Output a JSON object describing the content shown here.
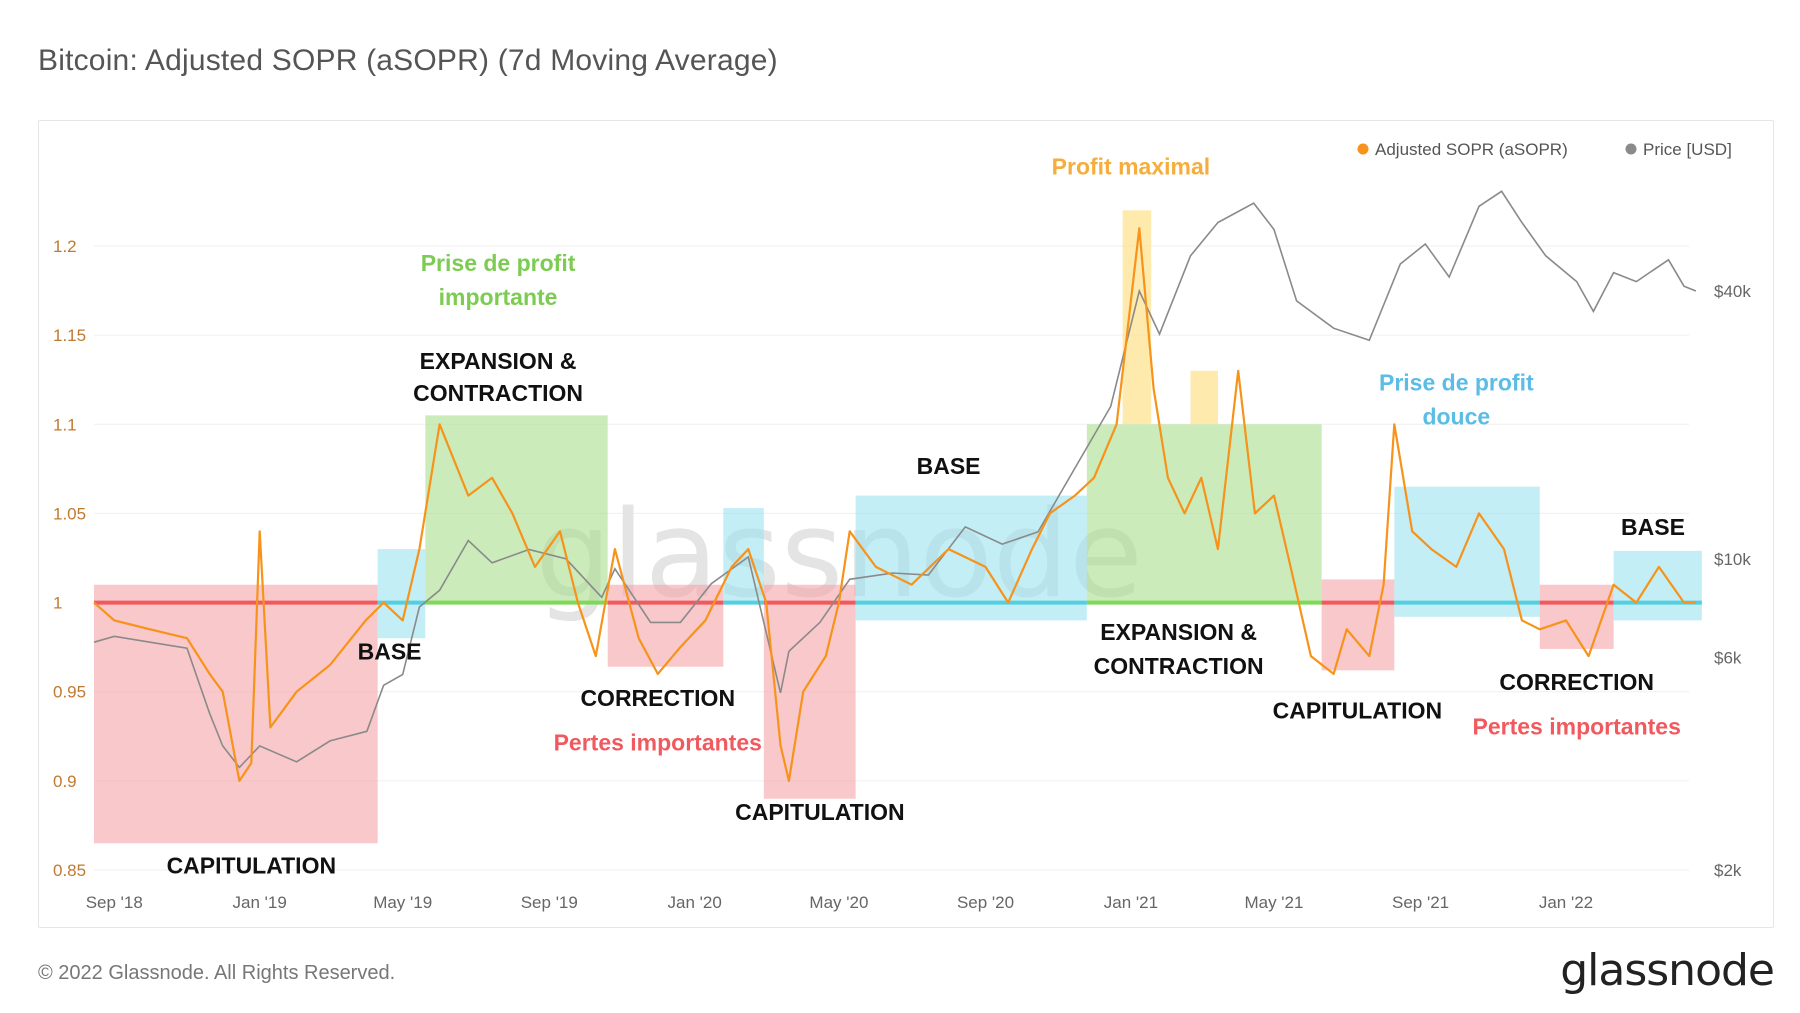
{
  "title": "Bitcoin: Adjusted SOPR (aSOPR) (7d Moving Average)",
  "footer": "© 2022 Glassnode. All Rights Reserved.",
  "brand": "glassnode",
  "watermark": "glassnode",
  "colors": {
    "sopr": "#f7931a",
    "price": "#8a8a8a",
    "red_zone": "#f5a3a8",
    "green_zone": "#a8e08c",
    "blue_zone": "#9be3ee",
    "yellow_zone": "#fde18a",
    "red_text": "#f05a5e",
    "green_text": "#7ccc52",
    "blue_text": "#5bbde6",
    "yellow_text": "#f5ae3c"
  },
  "chart_data": {
    "type": "line",
    "title": "Bitcoin: Adjusted SOPR (aSOPR) (7d Moving Average)",
    "x_ticks": [
      "Sep '18",
      "Jan '19",
      "May '19",
      "Sep '19",
      "Jan '20",
      "May '20",
      "Sep '20",
      "Jan '21",
      "May '21",
      "Sep '21",
      "Jan '22"
    ],
    "y_left": {
      "ticks": [
        "1.2",
        "1.15",
        "1.1",
        "1.05",
        "1",
        "0.95",
        "0.9",
        "0.85"
      ],
      "ylim": [
        0.85,
        1.2
      ]
    },
    "y_right": {
      "scale": "log",
      "ticks": [
        "$40k",
        "$10k",
        "$6k",
        "$2k"
      ]
    },
    "legend": {
      "placement": "top-right",
      "items": [
        "Adjusted SOPR (aSOPR)",
        "Price [USD]"
      ]
    },
    "series": [
      {
        "name": "Adjusted SOPR (aSOPR)",
        "axis": "left",
        "x": [
          "2018-08-15",
          "2018-09-01",
          "2018-10-01",
          "2018-11-01",
          "2018-11-20",
          "2018-12-01",
          "2018-12-15",
          "2018-12-25",
          "2019-01-01",
          "2019-01-10",
          "2019-02-01",
          "2019-03-01",
          "2019-03-31",
          "2019-04-15",
          "2019-05-01",
          "2019-05-15",
          "2019-06-01",
          "2019-06-25",
          "2019-07-15",
          "2019-08-01",
          "2019-08-20",
          "2019-09-10",
          "2019-09-25",
          "2019-10-10",
          "2019-10-26",
          "2019-11-15",
          "2019-12-01",
          "2019-12-20",
          "2020-01-10",
          "2020-02-01",
          "2020-02-15",
          "2020-03-01",
          "2020-03-13",
          "2020-03-20",
          "2020-04-01",
          "2020-04-20",
          "2020-05-01",
          "2020-05-10",
          "2020-06-01",
          "2020-07-01",
          "2020-08-01",
          "2020-09-01",
          "2020-09-20",
          "2020-10-10",
          "2020-10-25",
          "2020-11-15",
          "2020-12-01",
          "2020-12-20",
          "2021-01-08",
          "2021-01-20",
          "2021-02-01",
          "2021-02-15",
          "2021-03-01",
          "2021-03-15",
          "2021-04-01",
          "2021-04-15",
          "2021-05-01",
          "2021-05-15",
          "2021-06-01",
          "2021-06-20",
          "2021-07-01",
          "2021-07-20",
          "2021-08-01",
          "2021-08-10",
          "2021-08-25",
          "2021-09-10",
          "2021-10-01",
          "2021-10-20",
          "2021-11-10",
          "2021-11-25",
          "2021-12-10",
          "2022-01-01",
          "2022-01-20",
          "2022-02-10",
          "2022-03-01",
          "2022-03-20",
          "2022-04-10",
          "2022-04-20"
        ],
        "values": [
          1.0,
          0.99,
          0.985,
          0.98,
          0.96,
          0.95,
          0.9,
          0.91,
          1.04,
          0.93,
          0.95,
          0.965,
          0.99,
          1.0,
          0.99,
          1.03,
          1.1,
          1.06,
          1.07,
          1.05,
          1.02,
          1.04,
          1.0,
          0.97,
          1.03,
          0.98,
          0.96,
          0.975,
          0.99,
          1.02,
          1.03,
          1.0,
          0.92,
          0.9,
          0.95,
          0.97,
          1.0,
          1.04,
          1.02,
          1.01,
          1.03,
          1.02,
          1.0,
          1.03,
          1.05,
          1.06,
          1.07,
          1.1,
          1.21,
          1.12,
          1.07,
          1.05,
          1.07,
          1.03,
          1.13,
          1.05,
          1.06,
          1.02,
          0.97,
          0.96,
          0.985,
          0.97,
          1.01,
          1.1,
          1.04,
          1.03,
          1.02,
          1.05,
          1.03,
          0.99,
          0.985,
          0.99,
          0.97,
          1.01,
          1.0,
          1.02,
          1.0,
          1.0
        ]
      },
      {
        "name": "Price [USD]",
        "axis": "right",
        "x": [
          "2018-08-15",
          "2018-09-01",
          "2018-10-01",
          "2018-11-01",
          "2018-11-20",
          "2018-12-01",
          "2018-12-15",
          "2019-01-01",
          "2019-02-01",
          "2019-03-01",
          "2019-04-01",
          "2019-04-15",
          "2019-05-01",
          "2019-05-15",
          "2019-06-01",
          "2019-06-25",
          "2019-07-15",
          "2019-08-15",
          "2019-09-15",
          "2019-10-15",
          "2019-10-26",
          "2019-11-25",
          "2019-12-20",
          "2020-01-15",
          "2020-02-15",
          "2020-03-13",
          "2020-03-20",
          "2020-04-15",
          "2020-05-10",
          "2020-06-15",
          "2020-07-15",
          "2020-08-15",
          "2020-09-15",
          "2020-10-15",
          "2020-11-15",
          "2020-12-15",
          "2021-01-08",
          "2021-01-25",
          "2021-02-20",
          "2021-03-15",
          "2021-04-14",
          "2021-05-01",
          "2021-05-20",
          "2021-06-20",
          "2021-07-20",
          "2021-08-15",
          "2021-09-05",
          "2021-09-25",
          "2021-10-20",
          "2021-11-08",
          "2021-11-25",
          "2021-12-15",
          "2022-01-10",
          "2022-01-24",
          "2022-02-10",
          "2022-03-01",
          "2022-03-28",
          "2022-04-10",
          "2022-04-20"
        ],
        "values": [
          6500,
          6700,
          6500,
          6300,
          4500,
          3800,
          3400,
          3800,
          3500,
          3900,
          4100,
          5200,
          5500,
          7800,
          8500,
          11000,
          9800,
          10500,
          10000,
          8200,
          9500,
          7200,
          7200,
          8800,
          10100,
          5000,
          6200,
          7200,
          9000,
          9300,
          9200,
          11800,
          10800,
          11500,
          16000,
          22000,
          40000,
          32000,
          48000,
          57000,
          63000,
          55000,
          38000,
          33000,
          31000,
          46000,
          51000,
          43000,
          62000,
          67000,
          57000,
          48000,
          42000,
          36000,
          44000,
          42000,
          47000,
          41000,
          40000
        ]
      }
    ],
    "zones": [
      {
        "type": "capitulation",
        "start": "2018-08-15",
        "end": "2019-04-10",
        "low": 0.865,
        "high": 1.01
      },
      {
        "type": "base",
        "start": "2019-04-10",
        "end": "2019-05-20",
        "low": 0.98,
        "high": 1.03
      },
      {
        "type": "expansion",
        "start": "2019-05-20",
        "end": "2019-10-20",
        "low": 1.0,
        "high": 1.105
      },
      {
        "type": "correction",
        "start": "2019-10-20",
        "end": "2020-01-25",
        "low": 0.964,
        "high": 1.01
      },
      {
        "type": "base",
        "start": "2020-01-25",
        "end": "2020-02-28",
        "low": 1.0,
        "high": 1.053
      },
      {
        "type": "capitulation",
        "start": "2020-02-28",
        "end": "2020-05-15",
        "low": 0.89,
        "high": 1.01
      },
      {
        "type": "base",
        "start": "2020-05-15",
        "end": "2020-11-25",
        "low": 0.99,
        "high": 1.06
      },
      {
        "type": "expansion",
        "start": "2020-11-25",
        "end": "2021-06-10",
        "low": 1.0,
        "high": 1.1
      },
      {
        "type": "profit",
        "start": "2020-12-25",
        "end": "2021-01-18",
        "low": 1.1,
        "high": 1.22
      },
      {
        "type": "profit",
        "start": "2021-02-20",
        "end": "2021-03-15",
        "low": 1.1,
        "high": 1.13
      },
      {
        "type": "capitulation",
        "start": "2021-06-10",
        "end": "2021-08-10",
        "low": 0.962,
        "high": 1.013
      },
      {
        "type": "base",
        "start": "2021-08-10",
        "end": "2021-12-10",
        "low": 0.992,
        "high": 1.065
      },
      {
        "type": "correction",
        "start": "2021-12-10",
        "end": "2022-02-10",
        "low": 0.974,
        "high": 1.01
      },
      {
        "type": "base",
        "start": "2022-02-10",
        "end": "2022-04-25",
        "low": 0.99,
        "high": 1.029
      }
    ],
    "annotations": [
      {
        "text": "CAPITULATION",
        "style": "black",
        "date": "2018-12-25",
        "y": 0.848
      },
      {
        "text": "BASE",
        "style": "black",
        "date": "2019-04-20",
        "y": 0.968
      },
      {
        "text": "Prise de profit",
        "style": "green",
        "date": "2019-07-20",
        "y": 1.186
      },
      {
        "text": "importante",
        "style": "green",
        "date": "2019-07-20",
        "y": 1.167
      },
      {
        "text": "EXPANSION &",
        "style": "black",
        "date": "2019-07-20",
        "y": 1.131
      },
      {
        "text": "CONTRACTION",
        "style": "black",
        "date": "2019-07-20",
        "y": 1.113
      },
      {
        "text": "CORRECTION",
        "style": "black",
        "date": "2019-12-01",
        "y": 0.942
      },
      {
        "text": "Pertes importantes",
        "style": "red",
        "date": "2019-12-01",
        "y": 0.917
      },
      {
        "text": "CAPITULATION",
        "style": "black",
        "date": "2020-04-15",
        "y": 0.878
      },
      {
        "text": "BASE",
        "style": "black",
        "date": "2020-08-01",
        "y": 1.072
      },
      {
        "text": "Profit maximal",
        "style": "yellow",
        "date": "2021-01-01",
        "y": 1.24
      },
      {
        "text": "EXPANSION &",
        "style": "black",
        "date": "2021-02-10",
        "y": 0.979
      },
      {
        "text": "CONTRACTION",
        "style": "black",
        "date": "2021-02-10",
        "y": 0.96
      },
      {
        "text": "CAPITULATION",
        "style": "black",
        "date": "2021-07-10",
        "y": 0.935
      },
      {
        "text": "Prise de profit",
        "style": "blue",
        "date": "2021-10-01",
        "y": 1.119
      },
      {
        "text": "douce",
        "style": "blue",
        "date": "2021-10-01",
        "y": 1.1
      },
      {
        "text": "CORRECTION",
        "style": "black",
        "date": "2022-01-10",
        "y": 0.951
      },
      {
        "text": "Pertes importantes",
        "style": "red",
        "date": "2022-01-10",
        "y": 0.926
      },
      {
        "text": "BASE",
        "style": "black",
        "date": "2022-03-15",
        "y": 1.038
      }
    ]
  }
}
